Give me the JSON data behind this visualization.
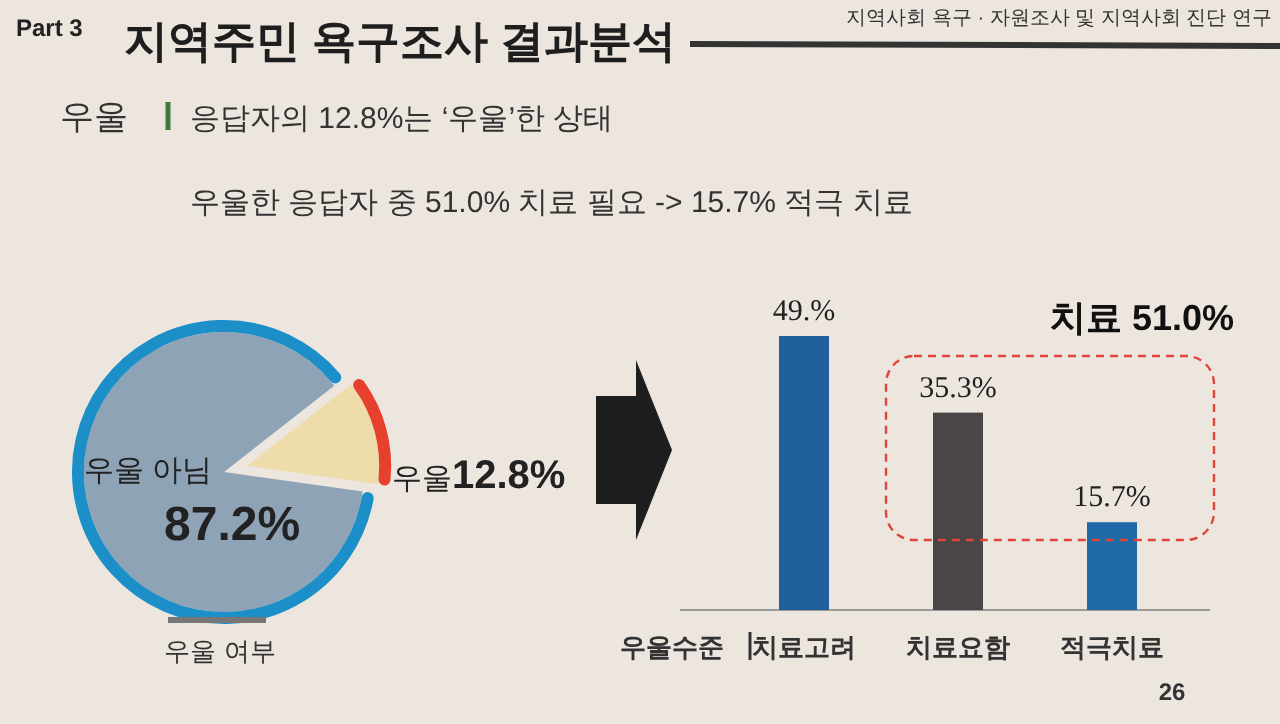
{
  "chart_data": [
    {
      "type": "pie",
      "title": "지역주민 욕구조사 결과분석",
      "xlabel": "우울 여부",
      "annotations": [
        "Part 3",
        "지역사회 욕구 · 자원조사 및 지역사회 진단 연구",
        "우울",
        "응답자의 12.8%는  ‘우울’한 상태",
        "우울한 응답자 중  51.0%  치료 필요 -> 15.7%  적극 치료"
      ],
      "categories": [
        "우울 아님",
        "우울"
      ],
      "values": [
        87.2,
        12.8
      ],
      "colors": [
        "#8ea3b5",
        "#eedcaa"
      ],
      "value_labels": [
        "87.2%",
        "12.8%"
      ]
    },
    {
      "type": "bar",
      "xlabel": "우울수준",
      "categories": [
        "치료고려",
        "치료요함",
        "적극치료"
      ],
      "values": [
        49,
        35.3,
        15.7
      ],
      "colors": [
        "#1f5f9a",
        "#4a4646",
        "#1f6aa6"
      ],
      "value_labels": [
        "49.%",
        "35.3%",
        "15.7%"
      ],
      "annotations": [
        "치료 51.0%",
        "26"
      ]
    }
  ]
}
